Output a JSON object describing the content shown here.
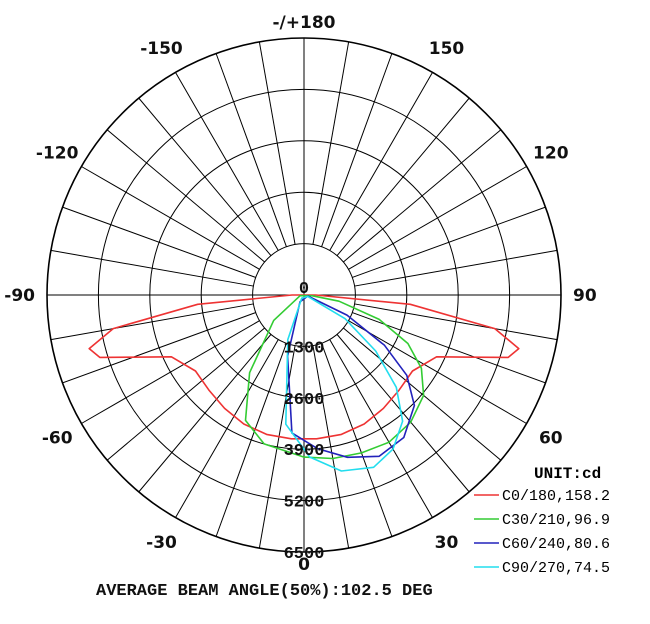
{
  "chart_data": {
    "type": "polar",
    "angle_labels": [
      {
        "angle": 180,
        "text": "-/+180"
      },
      {
        "angle": 150,
        "text": "150"
      },
      {
        "angle": -150,
        "text": "-150"
      },
      {
        "angle": 120,
        "text": "120"
      },
      {
        "angle": -120,
        "text": "-120"
      },
      {
        "angle": 90,
        "text": "90"
      },
      {
        "angle": -90,
        "text": "-90"
      },
      {
        "angle": 60,
        "text": "60"
      },
      {
        "angle": -60,
        "text": "-60"
      },
      {
        "angle": 30,
        "text": "30"
      },
      {
        "angle": -30,
        "text": "-30"
      },
      {
        "angle": 0,
        "text": "0"
      }
    ],
    "radial_ticks": [
      0,
      1300,
      2600,
      3900,
      5200,
      6500
    ],
    "radial_tick_labels": [
      "0",
      "1300",
      "2600",
      "3900",
      "5200",
      "6500"
    ],
    "r_max": 6500,
    "angle_step": 10,
    "unit_label": "UNIT:cd",
    "series": [
      {
        "name": "C0/180,158.2",
        "color": "#ee3333",
        "points": [
          [
            -90,
            300
          ],
          [
            -85,
            2700
          ],
          [
            -80,
            4900
          ],
          [
            -76,
            5600
          ],
          [
            -73,
            5400
          ],
          [
            -70,
            4600
          ],
          [
            -65,
            3700
          ],
          [
            -55,
            3350
          ],
          [
            -45,
            3400
          ],
          [
            -35,
            3500
          ],
          [
            -25,
            3600
          ],
          [
            -15,
            3650
          ],
          [
            -5,
            3650
          ],
          [
            5,
            3650
          ],
          [
            15,
            3650
          ],
          [
            25,
            3600
          ],
          [
            35,
            3500
          ],
          [
            45,
            3400
          ],
          [
            55,
            3350
          ],
          [
            65,
            3700
          ],
          [
            70,
            4600
          ],
          [
            73,
            5400
          ],
          [
            76,
            5600
          ],
          [
            80,
            4900
          ],
          [
            85,
            2700
          ],
          [
            90,
            300
          ]
        ]
      },
      {
        "name": "C30/210,96.9",
        "color": "#33cc33",
        "points": [
          [
            -80,
            100
          ],
          [
            -50,
            1000
          ],
          [
            -35,
            2400
          ],
          [
            -25,
            3500
          ],
          [
            -15,
            3900
          ],
          [
            0,
            4100
          ],
          [
            10,
            4200
          ],
          [
            20,
            4250
          ],
          [
            30,
            4300
          ],
          [
            40,
            4200
          ],
          [
            50,
            3950
          ],
          [
            58,
            3500
          ],
          [
            65,
            2900
          ],
          [
            72,
            2000
          ],
          [
            80,
            900
          ],
          [
            85,
            200
          ]
        ]
      },
      {
        "name": "C60/240,80.6",
        "color": "#2222bb",
        "points": [
          [
            -30,
            200
          ],
          [
            -15,
            1600
          ],
          [
            -5,
            3500
          ],
          [
            5,
            3900
          ],
          [
            15,
            4250
          ],
          [
            25,
            4500
          ],
          [
            35,
            4400
          ],
          [
            45,
            3950
          ],
          [
            52,
            3300
          ],
          [
            58,
            2400
          ],
          [
            65,
            1200
          ],
          [
            75,
            100
          ]
        ]
      },
      {
        "name": "C90/270,74.5",
        "color": "#22ddee",
        "points": [
          [
            -35,
            100
          ],
          [
            -20,
            1200
          ],
          [
            -8,
            3300
          ],
          [
            2,
            4100
          ],
          [
            12,
            4550
          ],
          [
            22,
            4700
          ],
          [
            30,
            4500
          ],
          [
            38,
            4050
          ],
          [
            45,
            3300
          ],
          [
            52,
            2300
          ],
          [
            60,
            1200
          ],
          [
            70,
            100
          ]
        ]
      }
    ]
  },
  "footer": {
    "text": "AVERAGE BEAM ANGLE(50%):102.5 DEG"
  }
}
